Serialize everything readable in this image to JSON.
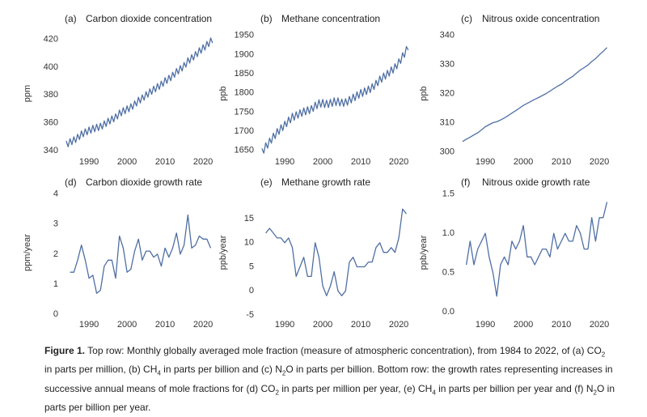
{
  "chart_data": [
    {
      "type": "line",
      "panel": "(a)",
      "title": "Carbon dioxide concentration",
      "ylabel": "ppm",
      "color": "#4f6fa3",
      "xlim": [
        1983.6,
        2023.6
      ],
      "xticks": [
        1990,
        2000,
        2010,
        2020
      ],
      "ylim": [
        337,
        425
      ],
      "yticks": [
        340,
        360,
        380,
        400,
        420
      ],
      "series": [
        {
          "x": [
            1984,
            1984.5,
            1985,
            1985.5,
            1986,
            1986.5,
            1987,
            1987.5,
            1988,
            1988.5,
            1989,
            1989.5,
            1990,
            1990.5,
            1991,
            1991.5,
            1992,
            1992.5,
            1993,
            1993.5,
            1994,
            1994.5,
            1995,
            1995.5,
            1996,
            1996.5,
            1997,
            1997.5,
            1998,
            1998.5,
            1999,
            1999.5,
            2000,
            2000.5,
            2001,
            2001.5,
            2002,
            2002.5,
            2003,
            2003.5,
            2004,
            2004.5,
            2005,
            2005.5,
            2006,
            2006.5,
            2007,
            2007.5,
            2008,
            2008.5,
            2009,
            2009.5,
            2010,
            2010.5,
            2011,
            2011.5,
            2012,
            2012.5,
            2013,
            2013.5,
            2014,
            2014.5,
            2015,
            2015.5,
            2016,
            2016.5,
            2017,
            2017.5,
            2018,
            2018.5,
            2019,
            2019.5,
            2020,
            2020.5,
            2021,
            2021.5,
            2022,
            2022.5
          ],
          "values": [
            346.9,
            342.7,
            348.5,
            344.2,
            349.9,
            345.8,
            351.7,
            347.9,
            354.1,
            349.9,
            355.6,
            351.3,
            356.9,
            352.5,
            358.1,
            353.5,
            358.9,
            354.3,
            359.6,
            355.5,
            361.3,
            357.3,
            363.2,
            359.1,
            364.9,
            360.6,
            366.3,
            362.7,
            369.1,
            365.0,
            370.8,
            366.5,
            372.1,
            367.9,
            373.6,
            369.7,
            375.7,
            372.0,
            378.3,
            374.2,
            380.0,
            376.2,
            382.3,
            378.4,
            384.4,
            380.4,
            386.3,
            382.2,
            388.1,
            384.0,
            389.9,
            386.2,
            392.4,
            388.3,
            394.1,
            390.2,
            396.3,
            392.7,
            399.0,
            395.1,
            401.1,
            397.2,
            403.3,
            400.0,
            406.7,
            402.9,
            409.0,
            405.1,
            411.2,
            407.6,
            413.9,
            410.0,
            416.1,
            412.3,
            418.5,
            414.8,
            421.0,
            417.3
          ]
        }
      ]
    },
    {
      "type": "line",
      "panel": "(b)",
      "title": "Methane concentration",
      "ylabel": "ppb",
      "color": "#4f6fa3",
      "xlim": [
        1983.6,
        2023.6
      ],
      "xticks": [
        1990,
        2000,
        2010,
        2020
      ],
      "ylim": [
        1639,
        1958
      ],
      "yticks": [
        1650,
        1700,
        1750,
        1800,
        1850,
        1900,
        1950
      ],
      "series": [
        {
          "x": [
            1984,
            1984.5,
            1985,
            1985.5,
            1986,
            1986.5,
            1987,
            1987.5,
            1988,
            1988.5,
            1989,
            1989.5,
            1990,
            1990.5,
            1991,
            1991.5,
            1992,
            1992.5,
            1993,
            1993.5,
            1994,
            1994.5,
            1995,
            1995.5,
            1996,
            1996.5,
            1997,
            1997.5,
            1998,
            1998.5,
            1999,
            1999.5,
            2000,
            2000.5,
            2001,
            2001.5,
            2002,
            2002.5,
            2003,
            2003.5,
            2004,
            2004.5,
            2005,
            2005.5,
            2006,
            2006.5,
            2007,
            2007.5,
            2008,
            2008.5,
            2009,
            2009.5,
            2010,
            2010.5,
            2011,
            2011.5,
            2012,
            2012.5,
            2013,
            2013.5,
            2014,
            2014.5,
            2015,
            2015.5,
            2016,
            2016.5,
            2017,
            2017.5,
            2018,
            2018.5,
            2019,
            2019.5,
            2020,
            2020.5,
            2021,
            2021.5,
            2022,
            2022.5
          ],
          "values": [
            1655,
            1643,
            1670,
            1656,
            1682,
            1669,
            1695,
            1681,
            1707,
            1692,
            1717,
            1702,
            1726,
            1712,
            1737,
            1722,
            1747,
            1729,
            1751,
            1734,
            1756,
            1739,
            1761,
            1743,
            1764,
            1746,
            1767,
            1752,
            1776,
            1759,
            1782,
            1763,
            1783,
            1762,
            1781,
            1762,
            1783,
            1765,
            1787,
            1767,
            1787,
            1766,
            1784,
            1765,
            1785,
            1768,
            1791,
            1774,
            1797,
            1780,
            1803,
            1786,
            1809,
            1791,
            1813,
            1796,
            1818,
            1801,
            1824,
            1809,
            1833,
            1819,
            1844,
            1828,
            1852,
            1836,
            1859,
            1844,
            1868,
            1852,
            1876,
            1863,
            1889,
            1877,
            1905,
            1893,
            1921,
            1912
          ]
        }
      ]
    },
    {
      "type": "line",
      "panel": "(c)",
      "title": "Nitrous oxide concentration",
      "ylabel": "ppb",
      "color": "#4f6fa3",
      "xlim": [
        1983.6,
        2023.6
      ],
      "xticks": [
        1990,
        2000,
        2010,
        2020
      ],
      "ylim": [
        299,
        341
      ],
      "yticks": [
        300,
        310,
        320,
        330,
        340
      ],
      "series": [
        {
          "x": [
            1984,
            1985,
            1986,
            1987,
            1988,
            1989,
            1990,
            1991,
            1992,
            1993,
            1994,
            1995,
            1996,
            1997,
            1998,
            1999,
            2000,
            2001,
            2002,
            2003,
            2004,
            2005,
            2006,
            2007,
            2008,
            2009,
            2010,
            2011,
            2012,
            2013,
            2014,
            2015,
            2016,
            2017,
            2018,
            2019,
            2020,
            2021,
            2022
          ],
          "values": [
            303.5,
            304.3,
            305.0,
            305.8,
            306.5,
            307.5,
            308.6,
            309.3,
            310.0,
            310.3,
            310.9,
            311.6,
            312.4,
            313.3,
            314.1,
            315.0,
            315.9,
            316.6,
            317.3,
            318.0,
            318.6,
            319.3,
            320.0,
            320.8,
            321.7,
            322.5,
            323.2,
            324.2,
            325.1,
            325.9,
            327.0,
            328.1,
            328.9,
            329.8,
            331.0,
            332.0,
            333.3,
            334.5,
            335.8
          ]
        }
      ]
    },
    {
      "type": "line",
      "panel": "(d)",
      "title": "Carbon dioxide growth rate",
      "ylabel": "ppm/year",
      "color": "#4f6fa3",
      "xlim": [
        1983.6,
        2023.6
      ],
      "xticks": [
        1990,
        2000,
        2010,
        2020
      ],
      "ylim": [
        -0.1,
        4.2
      ],
      "yticks": [
        0,
        1,
        2,
        3,
        4
      ],
      "series": [
        {
          "x": [
            1985,
            1986,
            1987,
            1988,
            1989,
            1990,
            1991,
            1992,
            1993,
            1994,
            1995,
            1996,
            1997,
            1998,
            1999,
            2000,
            2001,
            2002,
            2003,
            2004,
            2005,
            2006,
            2007,
            2008,
            2009,
            2010,
            2011,
            2012,
            2013,
            2014,
            2015,
            2016,
            2017,
            2018,
            2019,
            2020,
            2021,
            2022
          ],
          "values": [
            1.4,
            1.4,
            1.8,
            2.3,
            1.8,
            1.2,
            1.3,
            0.7,
            0.8,
            1.6,
            1.8,
            1.8,
            1.2,
            2.6,
            2.2,
            1.4,
            1.5,
            2.1,
            2.5,
            1.8,
            2.1,
            2.1,
            1.9,
            2.0,
            1.6,
            2.2,
            1.9,
            2.2,
            2.7,
            2.0,
            2.3,
            3.3,
            2.2,
            2.3,
            2.6,
            2.5,
            2.5,
            2.2
          ]
        }
      ]
    },
    {
      "type": "line",
      "panel": "(e)",
      "title": "Methane growth rate",
      "ylabel": "ppb/year",
      "color": "#4f6fa3",
      "xlim": [
        1983.6,
        2023.6
      ],
      "xticks": [
        1990,
        2000,
        2010,
        2020
      ],
      "ylim": [
        -5.5,
        21.4
      ],
      "yticks": [
        -5,
        0,
        5,
        10,
        15
      ],
      "series": [
        {
          "x": [
            1985,
            1986,
            1987,
            1988,
            1989,
            1990,
            1991,
            1992,
            1993,
            1994,
            1995,
            1996,
            1997,
            1998,
            1999,
            2000,
            2001,
            2002,
            2003,
            2004,
            2005,
            2006,
            2007,
            2008,
            2009,
            2010,
            2011,
            2012,
            2013,
            2014,
            2015,
            2016,
            2017,
            2018,
            2019,
            2020,
            2021,
            2022
          ],
          "values": [
            12,
            13,
            12,
            11,
            11,
            10,
            11,
            9,
            3,
            5,
            7,
            3,
            3,
            10,
            7,
            1,
            -1,
            1,
            4,
            0,
            -1,
            0,
            6,
            7,
            5,
            5,
            5,
            6,
            6,
            9,
            10,
            8,
            8,
            9,
            8,
            11,
            17,
            16
          ]
        }
      ]
    },
    {
      "type": "line",
      "panel": "(f)",
      "title": "Nitrous oxide growth rate",
      "ylabel": "ppb/year",
      "color": "#4f6fa3",
      "xlim": [
        1983.6,
        2023.6
      ],
      "xticks": [
        1990,
        2000,
        2010,
        2020
      ],
      "ylim": [
        -0.07,
        1.58
      ],
      "yticks": [
        {
          "value": 0,
          "label": "0.0"
        },
        0.5,
        {
          "value": 1,
          "label": "1.0"
        },
        1.5
      ],
      "series": [
        {
          "x": [
            1985,
            1986,
            1987,
            1988,
            1989,
            1990,
            1991,
            1992,
            1993,
            1994,
            1995,
            1996,
            1997,
            1998,
            1999,
            2000,
            2001,
            2002,
            2003,
            2004,
            2005,
            2006,
            2007,
            2008,
            2009,
            2010,
            2011,
            2012,
            2013,
            2014,
            2015,
            2016,
            2017,
            2018,
            2019,
            2020,
            2021,
            2022
          ],
          "values": [
            0.6,
            0.9,
            0.6,
            0.8,
            0.9,
            1.0,
            0.7,
            0.5,
            0.2,
            0.6,
            0.7,
            0.6,
            0.9,
            0.8,
            0.9,
            1.1,
            0.7,
            0.7,
            0.6,
            0.7,
            0.8,
            0.8,
            0.7,
            1.0,
            0.8,
            0.9,
            1.0,
            0.9,
            0.9,
            1.1,
            1.0,
            0.8,
            0.8,
            1.2,
            0.9,
            1.2,
            1.2,
            1.4
          ]
        }
      ]
    }
  ],
  "caption": {
    "label": "Figure 1.",
    "parts": [
      "Top row: Monthly globally averaged mole fraction (measure of atmospheric concentration), from 1984 to 2022, of (a) CO",
      "2",
      " in parts per million, (b) CH",
      "4",
      " in parts per billion and (c) N",
      "2",
      "O in parts per billion. Bottom row: the growth rates representing increases in successive annual means of mole fractions for (d) CO",
      "2",
      " in parts per million per year, (e) CH",
      "4",
      " in parts per billion per year and (f) N",
      "2",
      "O in parts per billion per year."
    ]
  }
}
